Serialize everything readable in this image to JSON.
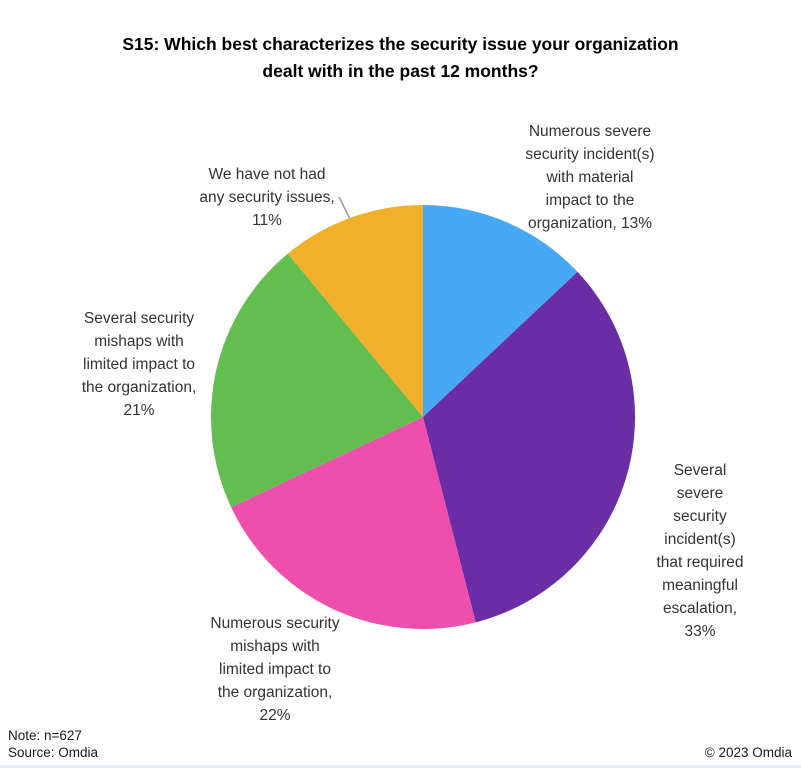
{
  "title": "S15: Which best characterizes the security issue your organization\ndealt with in the past 12 months?",
  "chart_data": {
    "type": "pie",
    "title": "S15: Which best characterizes the security issue your organization dealt with in the past 12 months?",
    "labels": [
      "Numerous severe security incident(s) with material impact to the organization",
      "Several severe security incident(s) that required meaningful escalation",
      "Numerous security mishaps with limited impact to the organization",
      "Several security mishaps with limited impact to the organization",
      "We have not had any security issues"
    ],
    "values": [
      13,
      33,
      22,
      21,
      11
    ],
    "unit": "%",
    "colors": [
      "#47A8F5",
      "#6B2DA6",
      "#EE4FAC",
      "#63BD4F",
      "#F2B02A"
    ],
    "start_angle_deg": 0,
    "direction": "clockwise",
    "legend_position": "none",
    "data_labels": [
      "Numerous severe\nsecurity incident(s)\nwith material\nimpact to the\norganization, 13%",
      "Several severe\nsecurity incident(s)\nthat required\nmeaningful\nescalation, 33%",
      "Numerous security\nmishaps with\nlimited impact to\nthe organization,\n22%",
      "Several security\nmishaps with\nlimited impact to\nthe organization,\n21%",
      "We have not had\nany security issues,\n11%"
    ]
  },
  "footer": {
    "note": "Note: n=627",
    "source": "Source: Omdia",
    "copyright": "© 2023 Omdia"
  }
}
